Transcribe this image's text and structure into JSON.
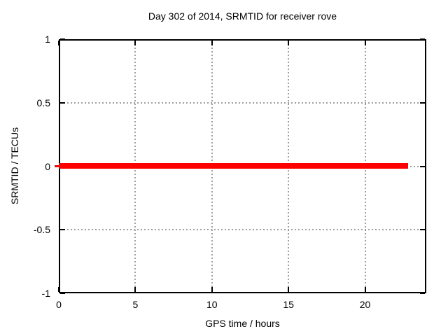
{
  "chart_data": {
    "type": "line",
    "title": "Day 302 of 2014, SRMTID for receiver rove",
    "xlabel": "GPS time / hours",
    "ylabel": "SRMTID / TECUs",
    "xlim": [
      0,
      24
    ],
    "ylim": [
      -1,
      1
    ],
    "xticks": [
      0,
      5,
      10,
      15,
      20
    ],
    "xtick_labels": [
      "0",
      "5",
      "10",
      "15",
      "20"
    ],
    "yticks": [
      -1,
      -0.5,
      0,
      0.5,
      1
    ],
    "ytick_labels": [
      "-1",
      "-0.5",
      "0",
      "0.5",
      "1"
    ],
    "grid": true,
    "grid_style": "dotted",
    "legend": "none",
    "series": [
      {
        "name": "SRMTID",
        "color": "#ff0000",
        "x": [
          0,
          22.8
        ],
        "y": [
          0,
          0
        ]
      }
    ],
    "colors": {
      "line": "#ff0000",
      "grid": "#a0a0a0",
      "border": "#000000",
      "text": "#000000",
      "background": "#ffffff"
    }
  }
}
